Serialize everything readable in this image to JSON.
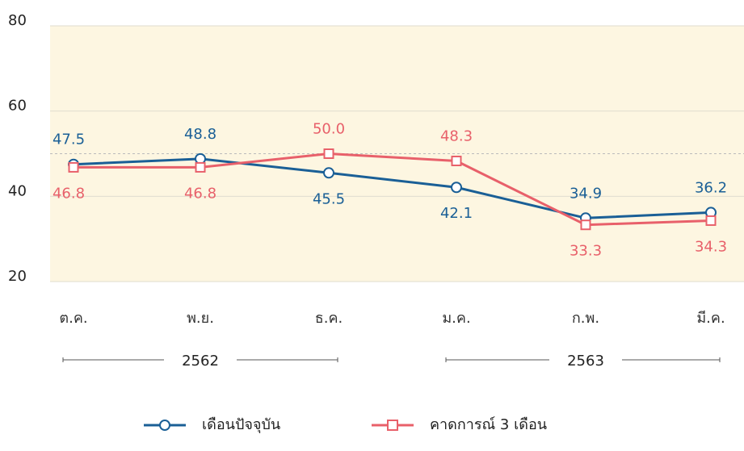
{
  "chart_data": {
    "type": "line",
    "categories": [
      "ต.ค.",
      "พ.ย.",
      "ธ.ค.",
      "ม.ค.",
      "ก.พ.",
      "มี.ค."
    ],
    "series": [
      {
        "name": "เดือนปัจจุบัน",
        "color": "#1a5f96",
        "marker": "circle",
        "values": [
          47.5,
          48.8,
          45.5,
          42.1,
          34.9,
          36.2
        ]
      },
      {
        "name": "คาดการณ์ 3 เดือน",
        "color": "#e8606a",
        "marker": "square",
        "values": [
          46.8,
          46.8,
          50.0,
          48.3,
          33.3,
          34.3
        ],
        "value_labels": [
          "46.8",
          "46.8",
          "50.0",
          "48.3",
          "33.3",
          "34.3"
        ]
      }
    ],
    "ylim": [
      20,
      80
    ],
    "yticks": [
      20,
      40,
      60,
      80
    ],
    "grid": true,
    "reference_line": 50,
    "groups": [
      {
        "label": "2562",
        "from": 0,
        "to": 2
      },
      {
        "label": "2563",
        "from": 3,
        "to": 5
      }
    ],
    "legend": "bottom"
  }
}
